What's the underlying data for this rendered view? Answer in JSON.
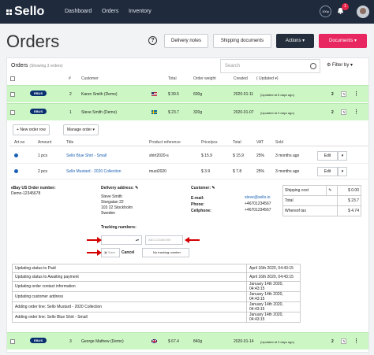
{
  "topbar": {
    "logo": "Sello",
    "nav": [
      "Dashboard",
      "Orders",
      "Inventory"
    ],
    "gauge": "100p",
    "notifications": "1"
  },
  "page": {
    "title": "Orders",
    "help": "?",
    "delivery_notes": "Delivery notes",
    "shipping_documents": "Shipping documents",
    "actions": "Actions ▾",
    "documents": "Documents ▾"
  },
  "list": {
    "heading": "Orders",
    "subheading": "(Showing 3 orders)",
    "search_placeholder": "Search",
    "filter": "Filter by ▾",
    "columns": [
      "#",
      "Customer",
      "Total",
      "Order weight",
      "Created",
      "( Updated ▾)"
    ],
    "rows": [
      {
        "tag": "EBUS",
        "num": "2",
        "customer": "Karen Smith (Demo)",
        "total": "$ 39.5",
        "weight": "600g",
        "created": "2020-01-11",
        "updated": "(Updated at 5 days ago)",
        "count": "2"
      },
      {
        "tag": "EBUS",
        "num": "1",
        "customer": "Steve Smith (Demo)",
        "total": "$ 23.7",
        "weight": "320g",
        "created": "2020-01-07",
        "updated": "(Updated at 3 days ago)",
        "count": "2"
      },
      {
        "tag": "EBUS",
        "num": "3",
        "customer": "George Mathew (Demo)",
        "total": "$ 67.4",
        "weight": "840g",
        "created": "2020-01-14",
        "updated": "(Updated at 3 days ago)",
        "count": "2"
      }
    ]
  },
  "detail": {
    "new_order_row": "New order row",
    "manage_order": "Manage order ▾",
    "item_columns": [
      "Art.no",
      "Amount",
      "Title",
      "Product reference",
      "Price/pcs",
      "Total",
      "VAT",
      "Sold"
    ],
    "items": [
      {
        "amount": "1 pcs",
        "title": "Sello Blue Shirt - Small",
        "ref": "shirt2020-s",
        "price": "$ 15.9",
        "total": "$ 15.9",
        "vat": "25%",
        "sold": "3 months ago",
        "edit": "Edit"
      },
      {
        "amount": "2 pcs",
        "title": "Sello Mustard - 2020 Collection",
        "ref": "must2020",
        "price": "$ 3.9",
        "total": "$ 7.8",
        "vat": "25%",
        "sold": "3 months ago",
        "edit": "Edit"
      }
    ],
    "ebay_label": "eBay US Order number:",
    "ebay_value": "Demo-12345678",
    "delivery_label": "Delivery address:",
    "address": [
      "Steve Smith",
      "Storgatan 22",
      "103 22 Stockholm",
      "Sweden"
    ],
    "customer_label": "Customer:",
    "email_label": "E-mail:",
    "email": "steve@sello.io",
    "phone_label": "Phone:",
    "phone": "+46701234567",
    "cell_label": "Cellphone:",
    "cell": "+46701234567",
    "tracking_label": "Tracking numbers:",
    "tracking_placeholder": "ABC123456789",
    "save": "Save",
    "cancel": "Cancel",
    "no_tracking": "No tracking number",
    "costs": [
      [
        "Shipping cost",
        "$ 0.00"
      ],
      [
        "Total",
        "$ 23.7"
      ],
      [
        "Whereof tax",
        "$ 4.74"
      ]
    ]
  },
  "log": [
    [
      "Updating status to Paid",
      "April 16th 2020, 04:43:15"
    ],
    [
      "Updating status to Awaiting payment",
      "April 16th 2020, 04:43:15"
    ],
    [
      "Updating order contact information",
      "January 14th 2020, 04:43:15"
    ],
    [
      "Updating customer address",
      "January 14th 2020, 04:43:15"
    ],
    [
      "Adding order line: Sello Mustard - 2020 Collection",
      "January 14th 2020, 04:43:15"
    ],
    [
      "Adding order line: Sello Blue Shirt - Small",
      "January 14th 2020, 04:43:15"
    ]
  ],
  "colors": {
    "topbar": "#1f2a3c",
    "row_green": "#ccf7c4",
    "ebus": "#0a3070",
    "documents": "#e8265f",
    "arrow": "#d40000"
  }
}
